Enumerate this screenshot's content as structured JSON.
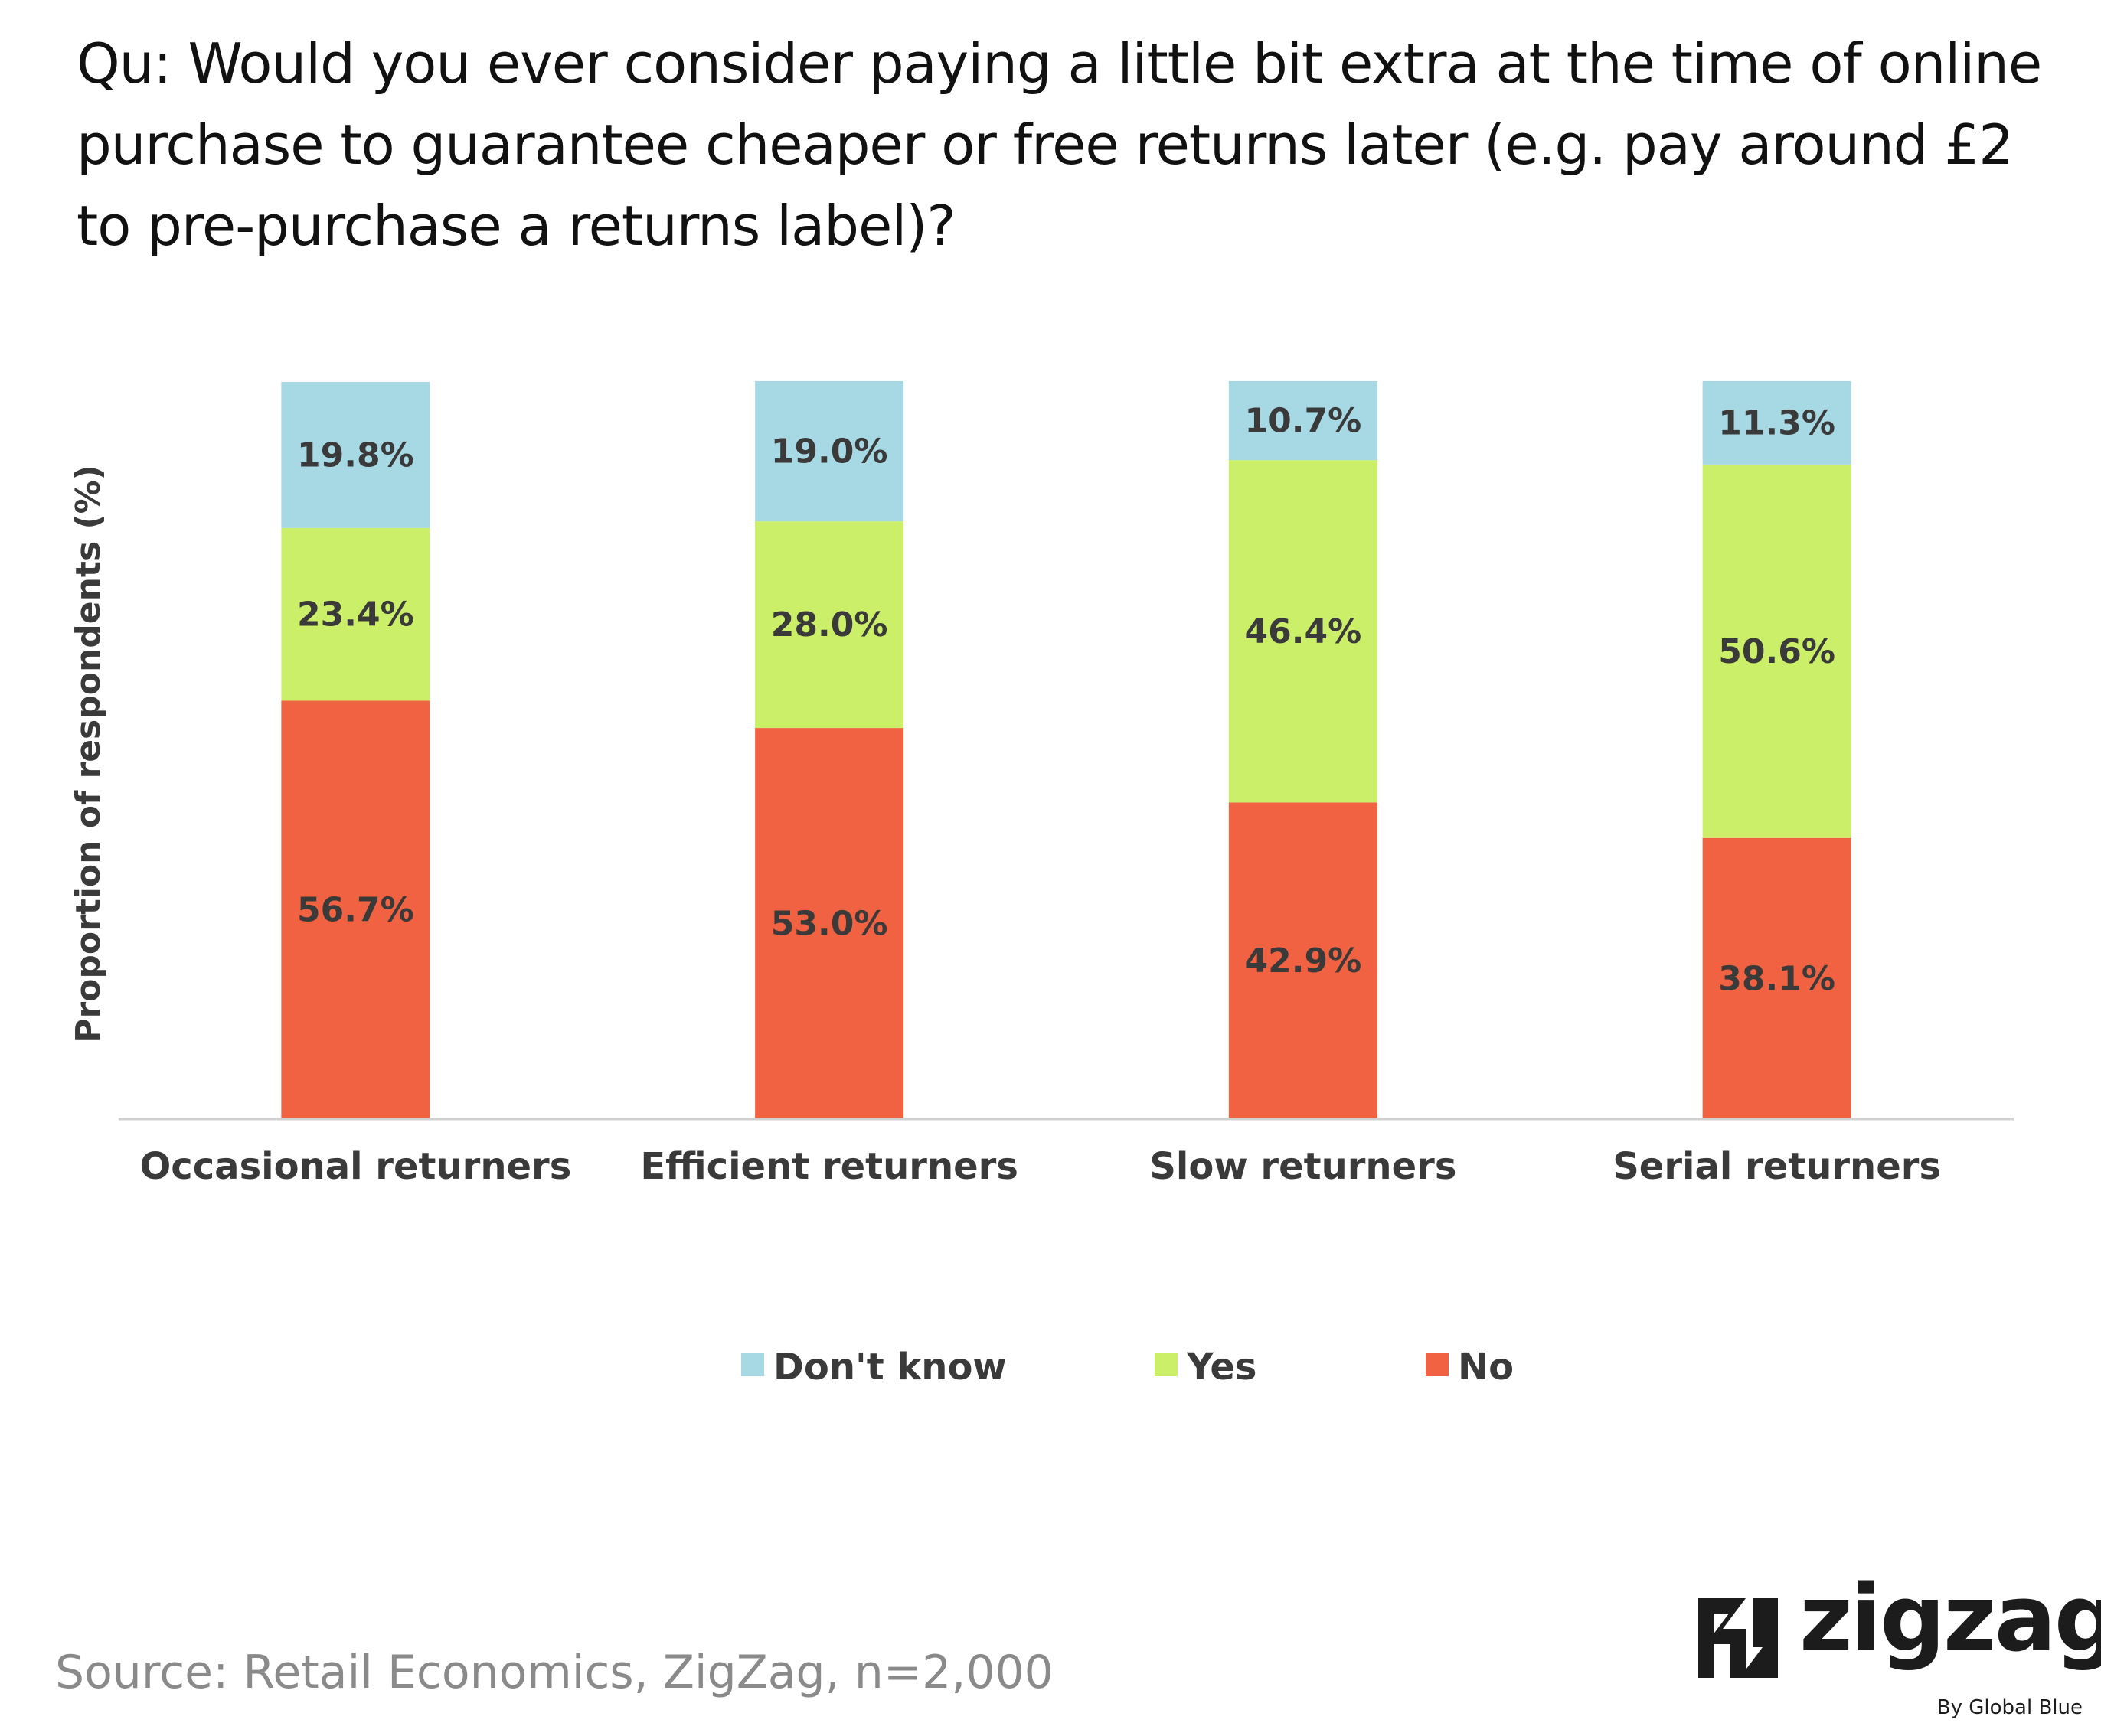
{
  "title": "Qu: Would you ever consider paying a little bit extra at the time of online purchase to guarantee cheaper or free returns later (e.g. pay around £2 to pre-purchase a returns label)?",
  "source": "Source: Retail Economics, ZigZag, n=2,000",
  "logo": {
    "wordmark": "zigzag",
    "tagline": "By Global Blue"
  },
  "chart_data": {
    "type": "bar",
    "stacked": true,
    "categories": [
      "Occasional returners",
      "Efficient returners",
      "Slow returners",
      "Serial returners"
    ],
    "series": [
      {
        "name": "No",
        "values": [
          56.7,
          53.0,
          42.9,
          38.1
        ],
        "labels": [
          "56.7%",
          "53.0%",
          "42.9%",
          "38.1%"
        ],
        "color": "#F06241"
      },
      {
        "name": "Yes",
        "values": [
          23.4,
          28.0,
          46.4,
          50.6
        ],
        "labels": [
          "23.4%",
          "28.0%",
          "46.4%",
          "50.6%"
        ],
        "color": "#CCEF6A"
      },
      {
        "name": "Don't know",
        "values": [
          19.8,
          19.0,
          10.7,
          11.3
        ],
        "labels": [
          "19.8%",
          "19.0%",
          "10.7%",
          "11.3%"
        ],
        "color": "#A7D9E4"
      }
    ],
    "legend_order": [
      "Don't know",
      "Yes",
      "No"
    ],
    "ylabel": "Proportion of respondents (%)",
    "xlabel": "",
    "ylim": [
      0,
      100
    ],
    "grid": false,
    "legend_position": "bottom",
    "axis_color": "#D0D0D0",
    "label_color": "#3a3a3a"
  }
}
